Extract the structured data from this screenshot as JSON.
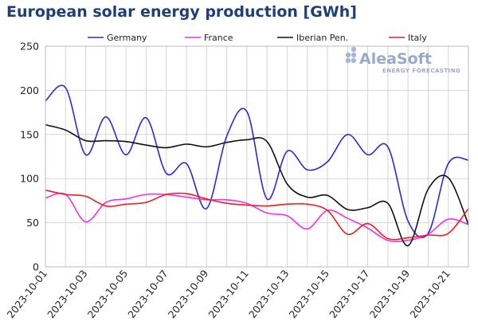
{
  "title": "European solar energy production [GWh]",
  "logo": {
    "main": "AleaSoft",
    "sub": "ENERGY FORECASTING"
  },
  "chart_data": {
    "type": "line",
    "ylim": [
      0,
      250
    ],
    "yticks": [
      0,
      50,
      100,
      150,
      200,
      250
    ],
    "grid": true,
    "legend_position": "top",
    "x": [
      "2023-10-01",
      "2023-10-02",
      "2023-10-03",
      "2023-10-04",
      "2023-10-05",
      "2023-10-06",
      "2023-10-07",
      "2023-10-08",
      "2023-10-09",
      "2023-10-10",
      "2023-10-11",
      "2023-10-12",
      "2023-10-13",
      "2023-10-14",
      "2023-10-15",
      "2023-10-16",
      "2023-10-17",
      "2023-10-18",
      "2023-10-19",
      "2023-10-20",
      "2023-10-21",
      "2023-10-22"
    ],
    "xtick_labels": [
      "2023-10-01",
      "2023-10-03",
      "2023-10-05",
      "2023-10-07",
      "2023-10-09",
      "2023-10-11",
      "2023-10-13",
      "2023-10-15",
      "2023-10-17",
      "2023-10-19",
      "2023-10-21"
    ],
    "series": [
      {
        "name": "Germany",
        "color": "#2a2ad9",
        "values": [
          188,
          203,
          127,
          170,
          127,
          169,
          106,
          117,
          66,
          148,
          176,
          77,
          131,
          110,
          119,
          150,
          127,
          136,
          52,
          38,
          117,
          121
        ]
      },
      {
        "name": "France",
        "color": "#ee2fee",
        "values": [
          78,
          82,
          51,
          73,
          77,
          82,
          82,
          79,
          76,
          76,
          72,
          61,
          58,
          43,
          64,
          55,
          44,
          30,
          30,
          37,
          54,
          48
        ]
      },
      {
        "name": "Iberian Pen.",
        "color": "#111111",
        "values": [
          161,
          155,
          143,
          143,
          142,
          138,
          135,
          139,
          136,
          141,
          144,
          142,
          94,
          79,
          81,
          65,
          67,
          72,
          24,
          88,
          101,
          48
        ]
      },
      {
        "name": "Italy",
        "color": "#ee1c1c",
        "values": [
          87,
          82,
          80,
          69,
          71,
          73,
          82,
          83,
          77,
          72,
          70,
          69,
          71,
          71,
          64,
          37,
          49,
          32,
          33,
          36,
          38,
          66
        ]
      }
    ]
  }
}
